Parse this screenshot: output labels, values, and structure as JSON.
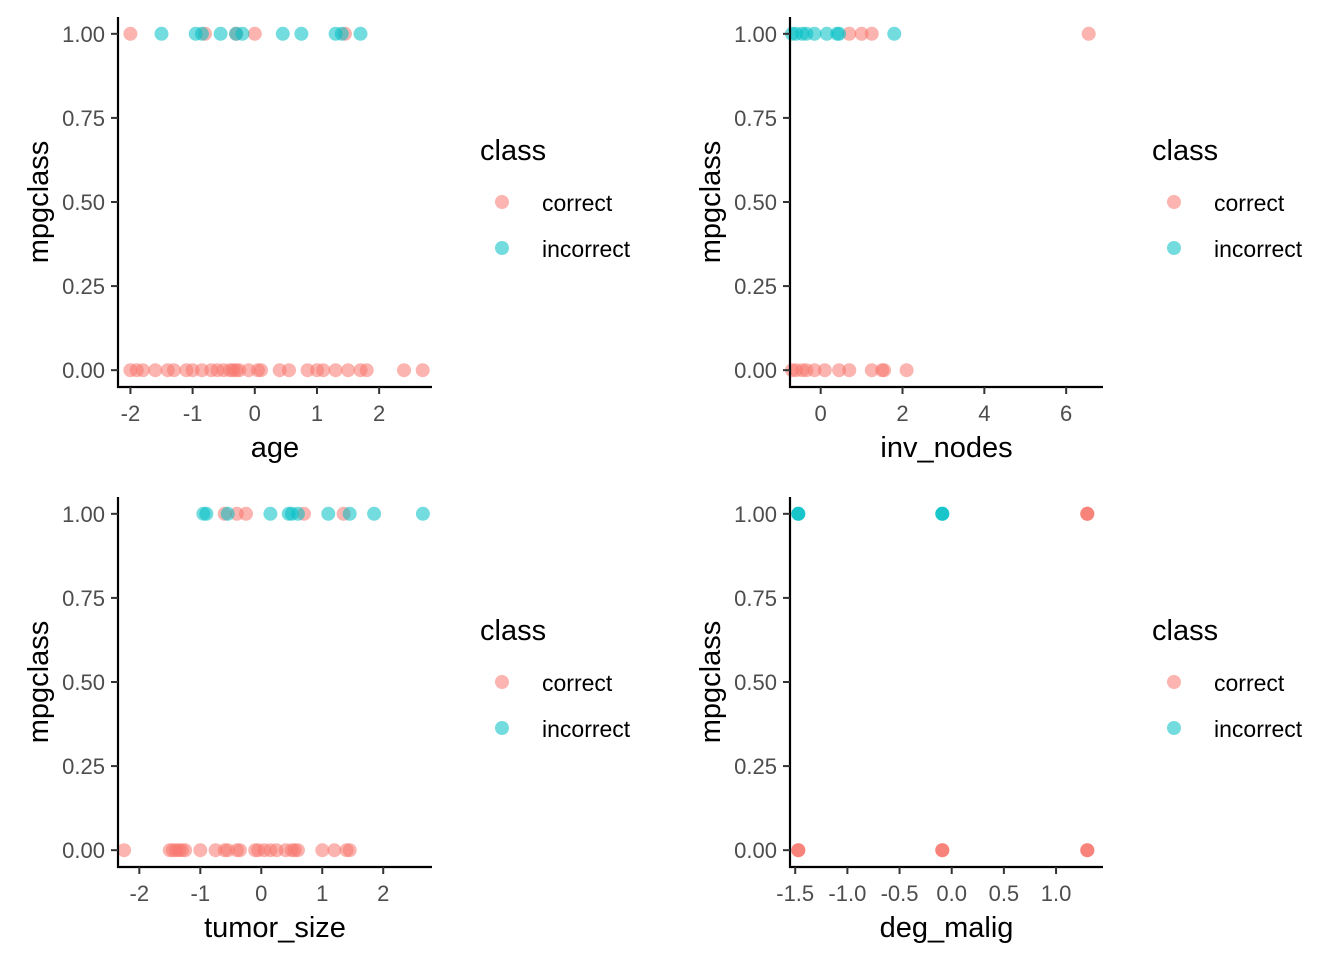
{
  "colors": {
    "correct": "#F8766D",
    "incorrect": "#00BFC4"
  },
  "chart_data": [
    {
      "type": "scatter",
      "xlabel": "age",
      "ylabel": "mpgclass",
      "xlim": [
        -2.2,
        2.85
      ],
      "ylim": [
        -0.05,
        1.05
      ],
      "x_ticks": [
        -2,
        -1,
        0,
        1,
        2
      ],
      "x_tick_labels": [
        "-2",
        "-1",
        "0",
        "1",
        "2"
      ],
      "y_ticks": [
        0,
        0.25,
        0.5,
        0.75,
        1
      ],
      "y_tick_labels": [
        "0.00",
        "0.25",
        "0.50",
        "0.75",
        "1.00"
      ],
      "legend": {
        "title": "class",
        "position": "right",
        "entries": [
          "correct",
          "incorrect"
        ]
      },
      "series": [
        {
          "name": "correct",
          "points": [
            [
              -2.0,
              1
            ],
            [
              -0.8,
              1
            ],
            [
              -0.3,
              1
            ],
            [
              0.0,
              1
            ],
            [
              1.45,
              1
            ],
            [
              -2.0,
              0
            ],
            [
              -1.9,
              0
            ],
            [
              -1.8,
              0
            ],
            [
              -1.6,
              0
            ],
            [
              -1.4,
              0
            ],
            [
              -1.3,
              0
            ],
            [
              -1.1,
              0
            ],
            [
              -1.0,
              0
            ],
            [
              -0.85,
              0
            ],
            [
              -0.7,
              0
            ],
            [
              -0.6,
              0
            ],
            [
              -0.5,
              0
            ],
            [
              -0.4,
              0
            ],
            [
              -0.35,
              0
            ],
            [
              -0.3,
              0
            ],
            [
              -0.25,
              0
            ],
            [
              -0.1,
              0
            ],
            [
              0.05,
              0
            ],
            [
              0.1,
              0
            ],
            [
              0.4,
              0
            ],
            [
              0.55,
              0
            ],
            [
              0.85,
              0
            ],
            [
              1.0,
              0
            ],
            [
              1.1,
              0
            ],
            [
              1.3,
              0
            ],
            [
              1.5,
              0
            ],
            [
              1.7,
              0
            ],
            [
              1.8,
              0
            ],
            [
              2.4,
              0
            ],
            [
              2.7,
              0
            ]
          ]
        },
        {
          "name": "incorrect",
          "points": [
            [
              -1.5,
              1
            ],
            [
              -0.95,
              1
            ],
            [
              -0.85,
              1
            ],
            [
              -0.55,
              1
            ],
            [
              -0.3,
              1
            ],
            [
              -0.2,
              1
            ],
            [
              0.45,
              1
            ],
            [
              0.75,
              1
            ],
            [
              1.3,
              1
            ],
            [
              1.4,
              1
            ],
            [
              1.7,
              1
            ]
          ]
        }
      ]
    },
    {
      "type": "scatter",
      "xlabel": "inv_nodes",
      "ylabel": "mpgclass",
      "xlim": [
        -0.75,
        6.9
      ],
      "ylim": [
        -0.05,
        1.05
      ],
      "x_ticks": [
        0,
        2,
        4,
        6
      ],
      "x_tick_labels": [
        "0",
        "2",
        "4",
        "6"
      ],
      "y_ticks": [
        0,
        0.25,
        0.5,
        0.75,
        1
      ],
      "y_tick_labels": [
        "0.00",
        "0.25",
        "0.50",
        "0.75",
        "1.00"
      ],
      "legend": {
        "title": "class",
        "position": "right",
        "entries": [
          "correct",
          "incorrect"
        ]
      },
      "series": [
        {
          "name": "correct",
          "points": [
            [
              0.7,
              1
            ],
            [
              1.0,
              1
            ],
            [
              1.25,
              1
            ],
            [
              6.55,
              1
            ],
            [
              -0.7,
              0
            ],
            [
              -0.6,
              0
            ],
            [
              -0.45,
              0
            ],
            [
              -0.35,
              0
            ],
            [
              -0.15,
              0
            ],
            [
              0.1,
              0
            ],
            [
              0.45,
              0
            ],
            [
              0.7,
              0
            ],
            [
              1.25,
              0
            ],
            [
              1.5,
              0
            ],
            [
              1.55,
              0
            ],
            [
              2.1,
              0
            ]
          ]
        },
        {
          "name": "incorrect",
          "points": [
            [
              -0.7,
              1
            ],
            [
              -0.6,
              1
            ],
            [
              -0.45,
              1
            ],
            [
              -0.35,
              1
            ],
            [
              -0.15,
              1
            ],
            [
              0.15,
              1
            ],
            [
              0.4,
              1
            ],
            [
              0.45,
              1
            ],
            [
              1.8,
              1
            ]
          ]
        }
      ]
    },
    {
      "type": "scatter",
      "xlabel": "tumor_size",
      "ylabel": "mpgclass",
      "xlim": [
        -2.35,
        2.8
      ],
      "ylim": [
        -0.05,
        1.05
      ],
      "x_ticks": [
        -2,
        -1,
        0,
        1,
        2
      ],
      "x_tick_labels": [
        "-2",
        "-1",
        "0",
        "1",
        "2"
      ],
      "y_ticks": [
        0,
        0.25,
        0.5,
        0.75,
        1
      ],
      "y_tick_labels": [
        "0.00",
        "0.25",
        "0.50",
        "0.75",
        "1.00"
      ],
      "legend": {
        "title": "class",
        "position": "right",
        "entries": [
          "correct",
          "incorrect"
        ]
      },
      "series": [
        {
          "name": "correct",
          "points": [
            [
              -0.6,
              1
            ],
            [
              -0.4,
              1
            ],
            [
              -0.25,
              1
            ],
            [
              0.7,
              1
            ],
            [
              1.35,
              1
            ],
            [
              -2.25,
              0
            ],
            [
              -1.5,
              0
            ],
            [
              -1.45,
              0
            ],
            [
              -1.4,
              0
            ],
            [
              -1.35,
              0
            ],
            [
              -1.3,
              0
            ],
            [
              -1.25,
              0
            ],
            [
              -1.0,
              0
            ],
            [
              -0.75,
              0
            ],
            [
              -0.6,
              0
            ],
            [
              -0.55,
              0
            ],
            [
              -0.4,
              0
            ],
            [
              -0.35,
              0
            ],
            [
              -0.1,
              0
            ],
            [
              -0.05,
              0
            ],
            [
              0.05,
              0
            ],
            [
              0.15,
              0
            ],
            [
              0.25,
              0
            ],
            [
              0.4,
              0
            ],
            [
              0.5,
              0
            ],
            [
              0.55,
              0
            ],
            [
              0.6,
              0
            ],
            [
              1.0,
              0
            ],
            [
              1.2,
              0
            ],
            [
              1.4,
              0
            ],
            [
              1.45,
              0
            ]
          ]
        },
        {
          "name": "incorrect",
          "points": [
            [
              -0.95,
              1
            ],
            [
              -0.9,
              1
            ],
            [
              -0.55,
              1
            ],
            [
              0.15,
              1
            ],
            [
              0.45,
              1
            ],
            [
              0.5,
              1
            ],
            [
              0.6,
              1
            ],
            [
              1.1,
              1
            ],
            [
              1.45,
              1
            ],
            [
              1.85,
              1
            ],
            [
              2.65,
              1
            ]
          ]
        }
      ]
    },
    {
      "type": "scatter",
      "xlabel": "deg_malig",
      "ylabel": "mpgclass",
      "xlim": [
        -1.55,
        1.45
      ],
      "ylim": [
        -0.05,
        1.05
      ],
      "x_ticks": [
        -1.5,
        -1.0,
        -0.5,
        0.0,
        0.5,
        1.0
      ],
      "x_tick_labels": [
        "-1.5",
        "-1.0",
        "-0.5",
        "0.0",
        "0.5",
        "1.0"
      ],
      "y_ticks": [
        0,
        0.25,
        0.5,
        0.75,
        1
      ],
      "y_tick_labels": [
        "0.00",
        "0.25",
        "0.50",
        "0.75",
        "1.00"
      ],
      "legend": {
        "title": "class",
        "position": "right",
        "entries": [
          "correct",
          "incorrect"
        ]
      },
      "series": [
        {
          "name": "correct",
          "points": [
            [
              1.3,
              1
            ],
            [
              1.3,
              1
            ],
            [
              1.3,
              1
            ],
            [
              -1.47,
              0
            ],
            [
              -1.47,
              0
            ],
            [
              -1.47,
              0
            ],
            [
              -0.09,
              0
            ],
            [
              -0.09,
              0
            ],
            [
              -0.09,
              0
            ],
            [
              1.3,
              0
            ],
            [
              1.3,
              0
            ],
            [
              1.3,
              0
            ]
          ]
        },
        {
          "name": "incorrect",
          "points": [
            [
              -1.47,
              1
            ],
            [
              -1.47,
              1
            ],
            [
              -1.47,
              1
            ],
            [
              -0.09,
              1
            ],
            [
              -0.09,
              1
            ],
            [
              -0.09,
              1
            ]
          ]
        }
      ]
    }
  ]
}
